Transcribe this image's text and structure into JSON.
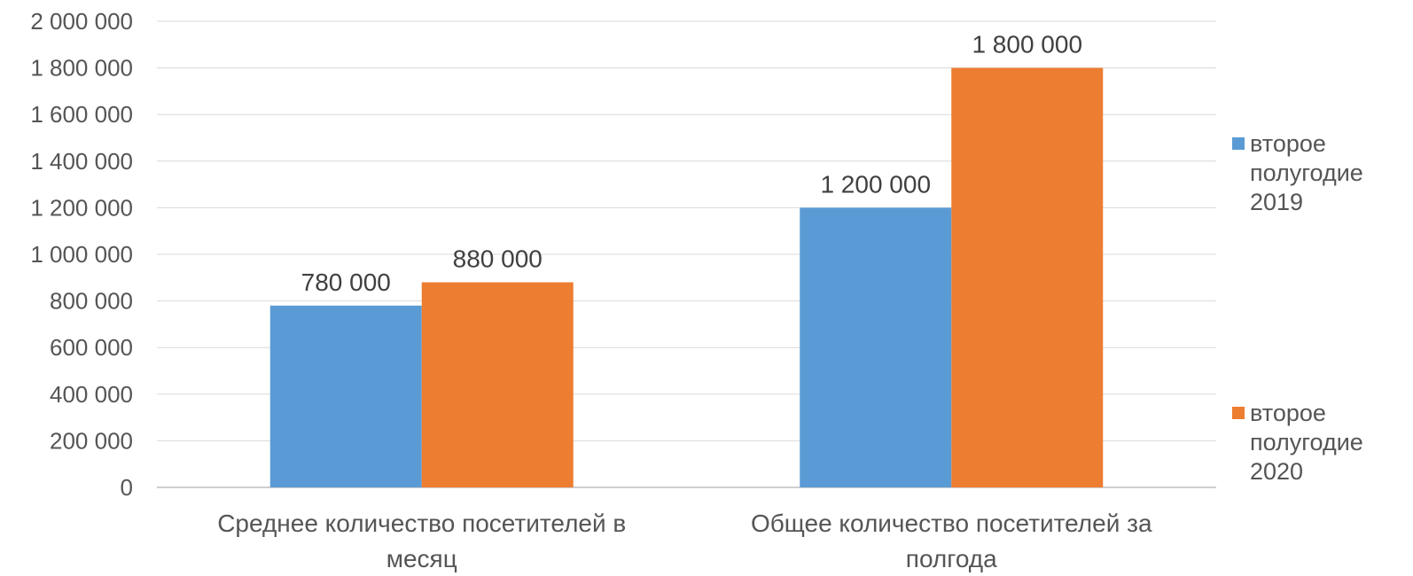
{
  "chart_data": {
    "type": "bar",
    "categories": [
      [
        "Среднее количество посетителей в",
        "месяц"
      ],
      [
        "Общее количество посетителей за",
        "полгода"
      ]
    ],
    "series": [
      {
        "name": [
          "второе",
          "полугодие",
          "2019"
        ],
        "color": "#5b9bd5",
        "values": [
          780000,
          1200000
        ],
        "labels": [
          "780 000",
          "1 200 000"
        ]
      },
      {
        "name": [
          "второе",
          "полугодие",
          " 2020"
        ],
        "color": "#ed7d31",
        "values": [
          880000,
          1800000
        ],
        "labels": [
          "880 000",
          "1 800 000"
        ]
      }
    ],
    "yticks": [
      {
        "value": 0,
        "label": "0"
      },
      {
        "value": 200000,
        "label": "200 000"
      },
      {
        "value": 400000,
        "label": "400 000"
      },
      {
        "value": 600000,
        "label": "600 000"
      },
      {
        "value": 800000,
        "label": "800 000"
      },
      {
        "value": 1000000,
        "label": "1 000 000"
      },
      {
        "value": 1200000,
        "label": "1 200 000"
      },
      {
        "value": 1400000,
        "label": "1 400 000"
      },
      {
        "value": 1600000,
        "label": "1 600 000"
      },
      {
        "value": 1800000,
        "label": "1 800 000"
      },
      {
        "value": 2000000,
        "label": "2 000 000"
      }
    ],
    "ylim": [
      0,
      2000000
    ],
    "grid": true,
    "legend_position": "right",
    "gridline_color": "#d9d9d9",
    "axis_color": "#bfbfbf"
  }
}
